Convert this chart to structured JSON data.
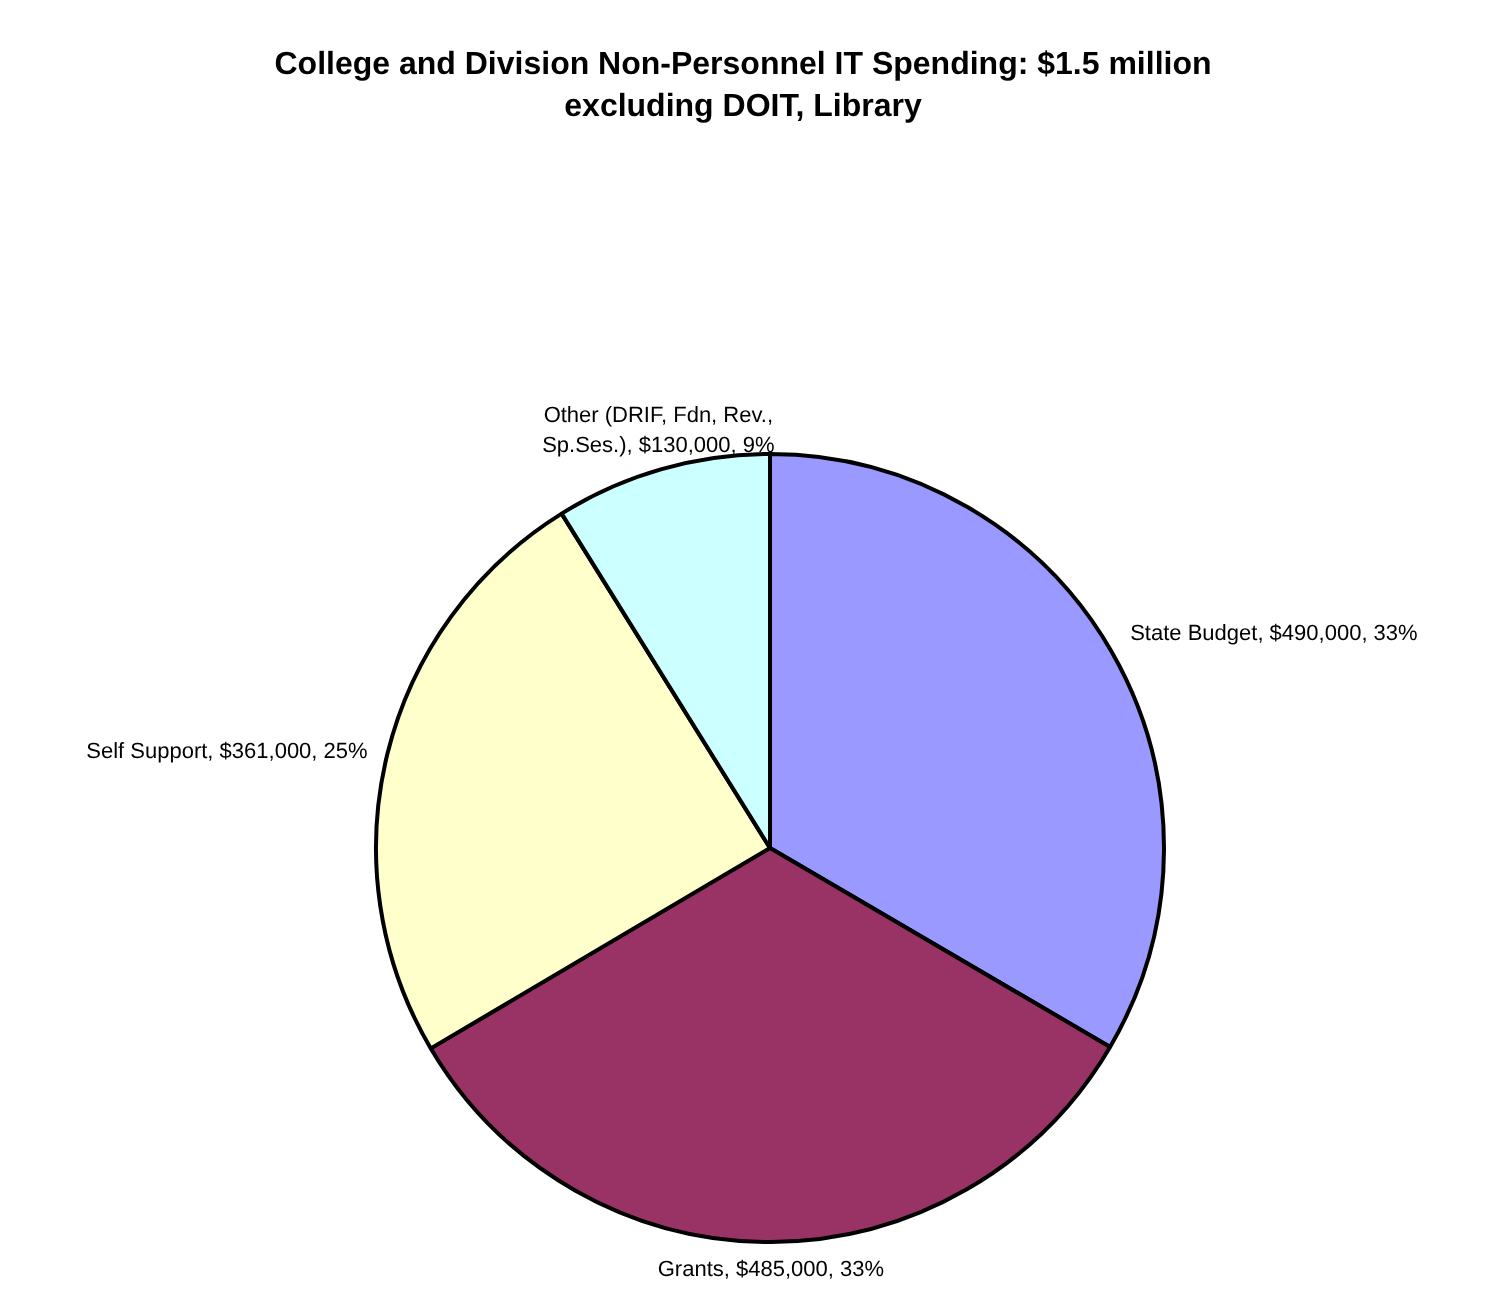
{
  "chart_data": {
    "type": "pie",
    "title": "College and Division Non-Personnel IT Spending: $1.5 million excluding DOIT, Library",
    "categories": [
      "State Budget",
      "Grants",
      "Self Support",
      "Other (DRIF, Fdn, Rev., Sp.Ses.)"
    ],
    "values": [
      490000,
      485000,
      361000,
      130000
    ],
    "colors": [
      "#9999ff",
      "#993366",
      "#ffffcc",
      "#ccffff"
    ],
    "value_labels": [
      "$490,000, 33%",
      "$485,000, 33%",
      "$361,000, 25%",
      "$130,000, 9%"
    ],
    "legend": false
  }
}
